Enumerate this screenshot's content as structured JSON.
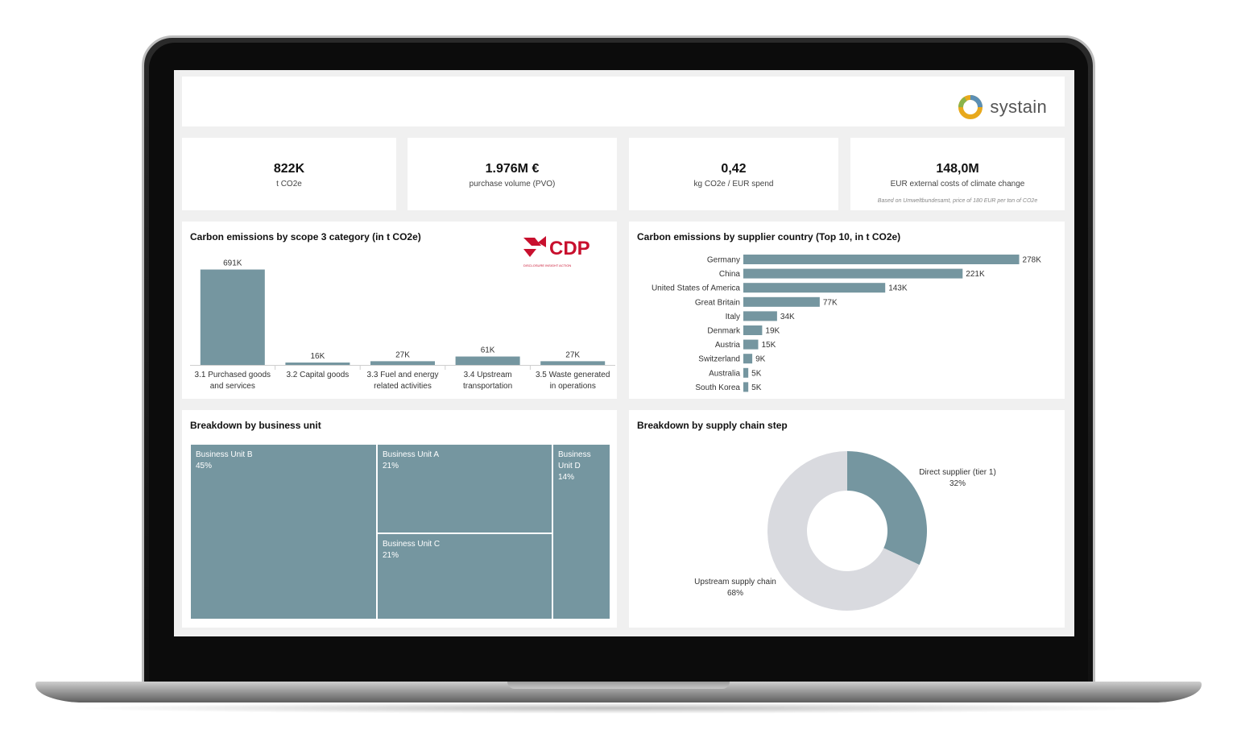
{
  "brand": {
    "name": "systain",
    "accent": "#7596a0",
    "donut_rest": "#d9dadf"
  },
  "kpis": [
    {
      "value": "822K",
      "label": "t CO2e"
    },
    {
      "value": "1.976M €",
      "label": "purchase volume (PVO)"
    },
    {
      "value": "0,42",
      "label": "kg CO2e / EUR spend"
    },
    {
      "value": "148,0M",
      "label": "EUR external costs of climate change",
      "note": "Based on Umweltbundesamt, price of 180 EUR per ton of CO2e"
    }
  ],
  "scope_panel": {
    "title": "Carbon emissions by scope 3 category (in t CO2e)",
    "logo_text": "CDP",
    "logo_subtext": "DISCLOSURE INSIGHT ACTION"
  },
  "country_panel": {
    "title": "Carbon emissions by supplier country (Top 10, in t CO2e)"
  },
  "business_panel": {
    "title": "Breakdown by business unit"
  },
  "supply_panel": {
    "title": "Breakdown by supply chain step"
  },
  "chart_data": [
    {
      "type": "bar",
      "title": "Carbon emissions by scope 3 category (in t CO2e)",
      "categories": [
        [
          "3.1 Purchased goods",
          "and services"
        ],
        [
          "3.2 Capital goods"
        ],
        [
          "3.3 Fuel and energy",
          "related activities"
        ],
        [
          "3.4 Upstream",
          "transportation"
        ],
        [
          "3.5 Waste generated",
          "in operations"
        ]
      ],
      "values": [
        691,
        16,
        27,
        61,
        27
      ],
      "labels": [
        "691K",
        "16K",
        "27K",
        "61K",
        "27K"
      ],
      "ylim": [
        0,
        700
      ]
    },
    {
      "type": "bar",
      "orientation": "horizontal",
      "title": "Carbon emissions by supplier country (Top 10, in t CO2e)",
      "categories": [
        "Germany",
        "China",
        "United States of America",
        "Great Britain",
        "Italy",
        "Denmark",
        "Austria",
        "Switzerland",
        "Australia",
        "South Korea"
      ],
      "values": [
        278,
        221,
        143,
        77,
        34,
        19,
        15,
        9,
        5,
        5
      ],
      "labels": [
        "278K",
        "221K",
        "143K",
        "77K",
        "34K",
        "19K",
        "15K",
        "9K",
        "5K",
        "5K"
      ],
      "xlim": [
        0,
        280
      ]
    },
    {
      "type": "treemap",
      "title": "Breakdown by business unit",
      "items": [
        {
          "name": "Business Unit B",
          "label": "45%",
          "value": 45
        },
        {
          "name": "Business Unit A",
          "label": "21%",
          "value": 21
        },
        {
          "name": "Business Unit C",
          "label": "21%",
          "value": 21
        },
        {
          "name_lines": [
            "Business",
            "Unit D"
          ],
          "label": "14%",
          "value": 14
        }
      ]
    },
    {
      "type": "pie",
      "title": "Breakdown by supply chain step",
      "slices": [
        {
          "name": "Direct supplier (tier 1)",
          "label": "32%",
          "value": 32
        },
        {
          "name": "Upstream supply chain",
          "label": "68%",
          "value": 68
        }
      ]
    }
  ]
}
